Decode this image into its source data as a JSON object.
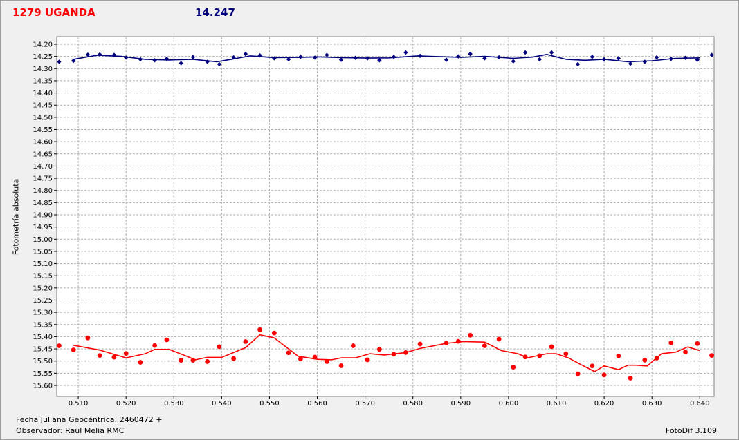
{
  "header": {
    "left_title": "1279 UGANDA",
    "right_value": "14.247"
  },
  "footer": {
    "date_line": "Fecha Juliana Geocéntrica: 2460472 +",
    "observer_line": "Observador: Raul Melia RMC",
    "version": "FotoDif 3.109"
  },
  "colors": {
    "blue_series": "#00007f",
    "red_series": "#ff0000",
    "grid": "#b0b0b0"
  },
  "chart_data": {
    "type": "scatter",
    "title": "",
    "xlabel": "",
    "ylabel": "Fotometría absoluta",
    "xlim": [
      0.5055,
      0.643
    ],
    "ylim": [
      14.2,
      15.6
    ],
    "y_inverted": true,
    "grid": true,
    "x_ticks": [
      "0.510",
      "0.520",
      "0.530",
      "0.540",
      "0.550",
      "0.560",
      "0.570",
      "0.580",
      "0.590",
      "0.600",
      "0.610",
      "0.620",
      "0.630",
      "0.640"
    ],
    "y_ticks": [
      "14.20",
      "14.25",
      "14.30",
      "14.35",
      "14.40",
      "14.45",
      "14.50",
      "14.55",
      "14.60",
      "14.65",
      "14.70",
      "14.75",
      "14.80",
      "14.85",
      "14.90",
      "14.95",
      "15.00",
      "15.05",
      "15.10",
      "15.15",
      "15.20",
      "15.25",
      "15.30",
      "15.35",
      "15.40",
      "15.45",
      "15.50",
      "15.55",
      "15.60"
    ],
    "series": [
      {
        "color": "#00007f",
        "marker": "diamond",
        "points": [
          [
            0.506,
            14.272
          ],
          [
            0.509,
            14.268
          ],
          [
            0.512,
            14.243
          ],
          [
            0.5145,
            14.242
          ],
          [
            0.5175,
            14.244
          ],
          [
            0.52,
            14.255
          ],
          [
            0.523,
            14.262
          ],
          [
            0.526,
            14.266
          ],
          [
            0.5285,
            14.26
          ],
          [
            0.5315,
            14.278
          ],
          [
            0.534,
            14.253
          ],
          [
            0.537,
            14.272
          ],
          [
            0.5395,
            14.282
          ],
          [
            0.5425,
            14.254
          ],
          [
            0.545,
            14.24
          ],
          [
            0.548,
            14.246
          ],
          [
            0.551,
            14.258
          ],
          [
            0.554,
            14.262
          ],
          [
            0.5565,
            14.252
          ],
          [
            0.5595,
            14.255
          ],
          [
            0.562,
            14.244
          ],
          [
            0.565,
            14.264
          ],
          [
            0.568,
            14.256
          ],
          [
            0.5705,
            14.258
          ],
          [
            0.573,
            14.266
          ],
          [
            0.576,
            14.252
          ],
          [
            0.5785,
            14.234
          ],
          [
            0.5815,
            14.248
          ],
          [
            0.587,
            14.264
          ],
          [
            0.5895,
            14.25
          ],
          [
            0.592,
            14.24
          ],
          [
            0.595,
            14.258
          ],
          [
            0.598,
            14.254
          ],
          [
            0.601,
            14.27
          ],
          [
            0.6035,
            14.234
          ],
          [
            0.6065,
            14.262
          ],
          [
            0.609,
            14.234
          ],
          [
            0.6145,
            14.282
          ],
          [
            0.6175,
            14.252
          ],
          [
            0.62,
            14.262
          ],
          [
            0.623,
            14.258
          ],
          [
            0.6255,
            14.28
          ],
          [
            0.6285,
            14.272
          ],
          [
            0.631,
            14.254
          ],
          [
            0.634,
            14.26
          ],
          [
            0.637,
            14.256
          ],
          [
            0.6395,
            14.264
          ],
          [
            0.6425,
            14.244
          ]
        ],
        "trend": [
          [
            0.509,
            14.262
          ],
          [
            0.514,
            14.245
          ],
          [
            0.519,
            14.25
          ],
          [
            0.524,
            14.262
          ],
          [
            0.529,
            14.265
          ],
          [
            0.534,
            14.262
          ],
          [
            0.539,
            14.272
          ],
          [
            0.542,
            14.262
          ],
          [
            0.546,
            14.248
          ],
          [
            0.551,
            14.255
          ],
          [
            0.5565,
            14.254
          ],
          [
            0.56,
            14.252
          ],
          [
            0.565,
            14.255
          ],
          [
            0.5705,
            14.257
          ],
          [
            0.575,
            14.256
          ],
          [
            0.581,
            14.248
          ],
          [
            0.59,
            14.254
          ],
          [
            0.595,
            14.25
          ],
          [
            0.601,
            14.258
          ],
          [
            0.605,
            14.253
          ],
          [
            0.608,
            14.242
          ],
          [
            0.612,
            14.262
          ],
          [
            0.616,
            14.266
          ],
          [
            0.62,
            14.262
          ],
          [
            0.625,
            14.272
          ],
          [
            0.63,
            14.268
          ],
          [
            0.635,
            14.258
          ],
          [
            0.64,
            14.256
          ]
        ]
      },
      {
        "color": "#ff0000",
        "marker": "circle",
        "points": [
          [
            0.506,
            15.437
          ],
          [
            0.509,
            15.454
          ],
          [
            0.512,
            15.405
          ],
          [
            0.5145,
            15.477
          ],
          [
            0.5175,
            15.484
          ],
          [
            0.52,
            15.469
          ],
          [
            0.523,
            15.505
          ],
          [
            0.526,
            15.436
          ],
          [
            0.5285,
            15.413
          ],
          [
            0.5315,
            15.497
          ],
          [
            0.534,
            15.497
          ],
          [
            0.537,
            15.502
          ],
          [
            0.5395,
            15.441
          ],
          [
            0.5425,
            15.49
          ],
          [
            0.545,
            15.42
          ],
          [
            0.548,
            15.371
          ],
          [
            0.551,
            15.385
          ],
          [
            0.554,
            15.466
          ],
          [
            0.5565,
            15.491
          ],
          [
            0.5595,
            15.484
          ],
          [
            0.562,
            15.502
          ],
          [
            0.565,
            15.519
          ],
          [
            0.5675,
            15.437
          ],
          [
            0.5705,
            15.495
          ],
          [
            0.573,
            15.452
          ],
          [
            0.576,
            15.472
          ],
          [
            0.5785,
            15.465
          ],
          [
            0.5815,
            15.43
          ],
          [
            0.587,
            15.426
          ],
          [
            0.5895,
            15.419
          ],
          [
            0.592,
            15.394
          ],
          [
            0.595,
            15.437
          ],
          [
            0.598,
            15.41
          ],
          [
            0.601,
            15.525
          ],
          [
            0.6035,
            15.483
          ],
          [
            0.6065,
            15.478
          ],
          [
            0.609,
            15.441
          ],
          [
            0.612,
            15.47
          ],
          [
            0.6145,
            15.552
          ],
          [
            0.6175,
            15.52
          ],
          [
            0.62,
            15.557
          ],
          [
            0.623,
            15.479
          ],
          [
            0.6255,
            15.57
          ],
          [
            0.6285,
            15.496
          ],
          [
            0.631,
            15.488
          ],
          [
            0.634,
            15.425
          ],
          [
            0.637,
            15.463
          ],
          [
            0.6395,
            15.428
          ],
          [
            0.6425,
            15.477
          ]
        ],
        "trend": [
          [
            0.509,
            15.435
          ],
          [
            0.5145,
            15.455
          ],
          [
            0.52,
            15.487
          ],
          [
            0.524,
            15.47
          ],
          [
            0.526,
            15.452
          ],
          [
            0.529,
            15.452
          ],
          [
            0.532,
            15.475
          ],
          [
            0.5345,
            15.495
          ],
          [
            0.537,
            15.485
          ],
          [
            0.54,
            15.485
          ],
          [
            0.545,
            15.445
          ],
          [
            0.548,
            15.392
          ],
          [
            0.551,
            15.405
          ],
          [
            0.556,
            15.48
          ],
          [
            0.56,
            15.493
          ],
          [
            0.563,
            15.495
          ],
          [
            0.565,
            15.487
          ],
          [
            0.568,
            15.487
          ],
          [
            0.571,
            15.47
          ],
          [
            0.574,
            15.475
          ],
          [
            0.5785,
            15.465
          ],
          [
            0.5815,
            15.448
          ],
          [
            0.587,
            15.427
          ],
          [
            0.5905,
            15.42
          ],
          [
            0.595,
            15.422
          ],
          [
            0.5985,
            15.457
          ],
          [
            0.602,
            15.47
          ],
          [
            0.604,
            15.487
          ],
          [
            0.606,
            15.478
          ],
          [
            0.608,
            15.47
          ],
          [
            0.61,
            15.47
          ],
          [
            0.6125,
            15.487
          ],
          [
            0.615,
            15.513
          ],
          [
            0.618,
            15.543
          ],
          [
            0.62,
            15.52
          ],
          [
            0.623,
            15.535
          ],
          [
            0.625,
            15.517
          ],
          [
            0.6265,
            15.517
          ],
          [
            0.629,
            15.52
          ],
          [
            0.632,
            15.47
          ],
          [
            0.635,
            15.463
          ],
          [
            0.6375,
            15.442
          ],
          [
            0.64,
            15.457
          ]
        ]
      }
    ]
  }
}
